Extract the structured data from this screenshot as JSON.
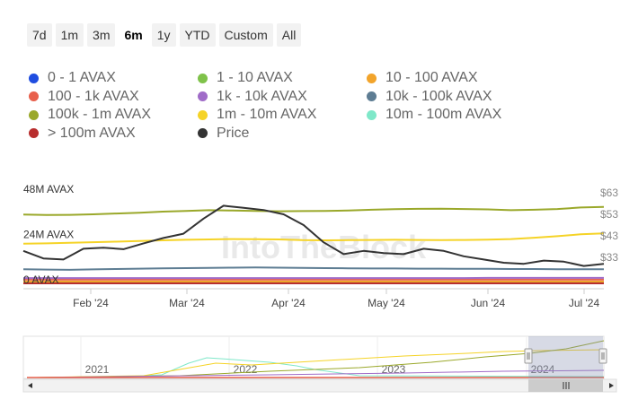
{
  "range_buttons": [
    {
      "label": "7d",
      "active": false
    },
    {
      "label": "1m",
      "active": false
    },
    {
      "label": "3m",
      "active": false
    },
    {
      "label": "6m",
      "active": true
    },
    {
      "label": "1y",
      "active": false
    },
    {
      "label": "YTD",
      "active": false
    },
    {
      "label": "Custom",
      "active": false
    },
    {
      "label": "All",
      "active": false
    }
  ],
  "watermark": "IntoTheBlock",
  "chart_data": {
    "type": "line",
    "x_ticks": [
      "Feb '24",
      "Mar '24",
      "Apr '24",
      "May '24",
      "Jun '24",
      "Jul '24"
    ],
    "y_left": {
      "ticks": [
        "0 AVAX",
        "24M AVAX",
        "48M AVAX"
      ],
      "values": [
        0,
        24,
        48
      ],
      "unit": "M AVAX"
    },
    "y_right": {
      "ticks": [
        "$33",
        "$43",
        "$53",
        "$63"
      ],
      "values": [
        33,
        43,
        53,
        63
      ]
    },
    "legend_placement": "top",
    "series": [
      {
        "name": "0 - 1 AVAX",
        "color": "#1f4de0",
        "axis": "left",
        "values": [
          0.1,
          0.1,
          0.1,
          0.1,
          0.1,
          0.1,
          0.1,
          0.1,
          0.1,
          0.1,
          0.1,
          0.1,
          0.1,
          0.1,
          0.1,
          0.1,
          0.1,
          0.1,
          0.1,
          0.1,
          0.1,
          0.1,
          0.1,
          0.1,
          0.1,
          0.1
        ]
      },
      {
        "name": "1 - 10 AVAX",
        "color": "#7fc24a",
        "axis": "left",
        "values": [
          0.3,
          0.3,
          0.3,
          0.3,
          0.3,
          0.3,
          0.3,
          0.3,
          0.3,
          0.3,
          0.3,
          0.3,
          0.3,
          0.3,
          0.3,
          0.3,
          0.3,
          0.3,
          0.3,
          0.3,
          0.3,
          0.3,
          0.3,
          0.3,
          0.3,
          0.3
        ]
      },
      {
        "name": "10 - 100 AVAX",
        "color": "#f2a42b",
        "axis": "left",
        "values": [
          1.0,
          1.0,
          1.0,
          1.0,
          1.0,
          1.0,
          1.0,
          1.0,
          1.0,
          1.0,
          1.0,
          1.0,
          1.0,
          1.0,
          1.0,
          1.0,
          1.0,
          1.0,
          1.0,
          1.0,
          1.0,
          1.0,
          1.0,
          1.0,
          1.0,
          1.0
        ]
      },
      {
        "name": "100 - 1k AVAX",
        "color": "#e8604c",
        "axis": "left",
        "values": [
          2.0,
          2.0,
          2.0,
          2.0,
          2.0,
          2.0,
          2.0,
          2.0,
          2.0,
          2.0,
          2.0,
          2.0,
          2.0,
          2.0,
          2.0,
          2.0,
          2.0,
          2.0,
          2.0,
          2.0,
          2.0,
          2.0,
          2.0,
          2.0,
          2.0,
          2.0
        ]
      },
      {
        "name": "1k - 10k AVAX",
        "color": "#a06cc8",
        "axis": "left",
        "values": [
          2.8,
          2.8,
          2.8,
          2.8,
          2.8,
          2.8,
          2.8,
          2.8,
          2.8,
          2.8,
          2.8,
          2.8,
          2.8,
          2.8,
          2.8,
          2.8,
          2.8,
          2.8,
          2.8,
          2.8,
          2.9,
          2.9,
          2.9,
          2.9,
          2.9,
          2.9
        ]
      },
      {
        "name": "10k - 100k AVAX",
        "color": "#5e7d93",
        "axis": "left",
        "values": [
          7.5,
          7.3,
          7.2,
          7.4,
          7.6,
          7.8,
          8.0,
          8.1,
          8.2,
          8.3,
          8.4,
          8.3,
          8.2,
          8.1,
          8.0,
          7.9,
          7.9,
          7.8,
          7.8,
          7.7,
          7.7,
          7.6,
          7.6,
          7.5,
          7.5,
          7.5
        ]
      },
      {
        "name": "100k - 1m AVAX",
        "color": "#9aa82a",
        "axis": "left",
        "values": [
          36.5,
          36.2,
          36.3,
          36.6,
          37.0,
          37.4,
          38.0,
          38.4,
          38.8,
          38.6,
          38.4,
          38.2,
          38.3,
          38.4,
          38.6,
          39.0,
          39.3,
          39.5,
          39.6,
          39.4,
          39.2,
          38.8,
          39.0,
          39.4,
          40.2,
          40.5
        ]
      },
      {
        "name": "1m - 10m AVAX",
        "color": "#f5d327",
        "axis": "left",
        "values": [
          21.0,
          21.2,
          21.5,
          21.8,
          22.1,
          22.5,
          22.8,
          23.1,
          23.3,
          23.5,
          23.4,
          23.3,
          22.9,
          22.8,
          22.9,
          23.0,
          23.1,
          23.0,
          22.9,
          23.0,
          23.2,
          23.5,
          24.2,
          25.0,
          26.0,
          26.5
        ]
      },
      {
        "name": "10m - 100m AVAX",
        "color": "#7fe8c9",
        "axis": "left",
        "values": [
          0,
          0,
          0,
          0,
          0,
          0,
          0,
          0,
          0,
          0,
          0,
          0,
          0,
          0,
          0,
          0,
          0,
          0,
          0,
          0,
          0,
          0,
          0,
          0,
          0,
          0
        ]
      },
      {
        "name": "> 100m AVAX",
        "color": "#b82e2e",
        "axis": "left",
        "values": [
          0,
          0,
          0,
          0,
          0,
          0,
          0,
          0,
          0,
          0,
          0,
          0,
          0,
          0,
          0,
          0,
          0,
          0,
          0,
          0,
          0,
          0,
          0,
          0,
          0,
          0
        ]
      },
      {
        "name": "Price",
        "color": "#333333",
        "axis": "right",
        "values": [
          36.0,
          32.5,
          32.0,
          37.0,
          37.5,
          36.8,
          39.5,
          42.0,
          44.0,
          51.0,
          57.0,
          56.0,
          55.0,
          53.0,
          48.0,
          40.0,
          34.5,
          36.0,
          35.0,
          34.5,
          37.0,
          36.0,
          33.5,
          32.0,
          30.5,
          30.0,
          31.5,
          31.0,
          29.0,
          30.0
        ]
      }
    ]
  },
  "navigator": {
    "years": [
      "2021",
      "2022",
      "2023",
      "2024"
    ]
  }
}
